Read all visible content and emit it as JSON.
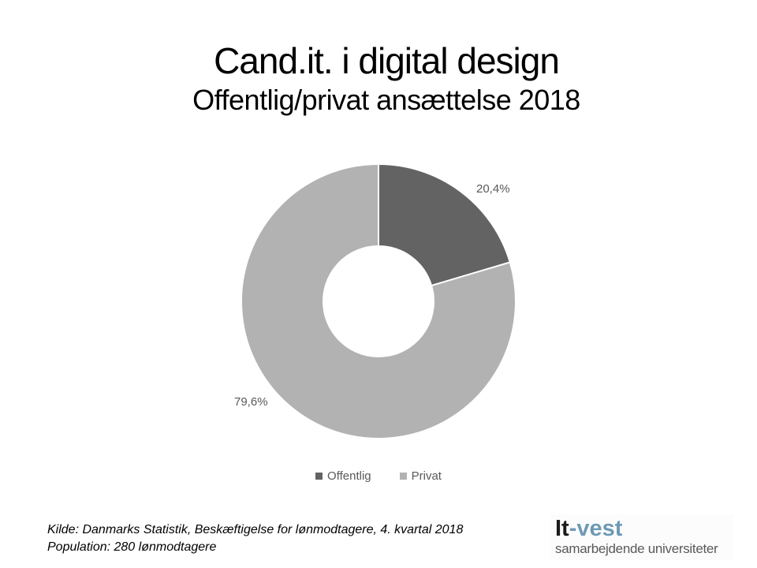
{
  "slide": {
    "title": "Cand.it. i digital design",
    "subtitle": "Offentlig/privat ansættelse 2018"
  },
  "chart_data": {
    "type": "pie",
    "subtype": "donut",
    "title": "Cand.it. i digital design",
    "subtitle": "Offentlig/privat ansættelse 2018",
    "categories": [
      "Offentlig",
      "Privat"
    ],
    "values": [
      20.4,
      79.6
    ],
    "value_labels": [
      "20,4%",
      "79,6%"
    ],
    "colors": [
      "#636363",
      "#b2b2b2"
    ],
    "start_angle_deg": 0,
    "direction": "clockwise",
    "inner_radius_ratio": 0.4,
    "legend_position": "bottom"
  },
  "legend": {
    "items": [
      {
        "label": "Offentlig",
        "color": "#636363"
      },
      {
        "label": "Privat",
        "color": "#b2b2b2"
      }
    ]
  },
  "footer": {
    "kilde": "Kilde: Danmarks Statistik, Beskæftigelse for lønmodtagere, 4. kvartal 2018",
    "population": "Population: 280 lønmodtagere"
  },
  "logo": {
    "brand_prefix": "It",
    "brand_suffix": "-vest",
    "tagline": "samarbejdende universiteter",
    "accent_color": "#6d9ab5"
  }
}
